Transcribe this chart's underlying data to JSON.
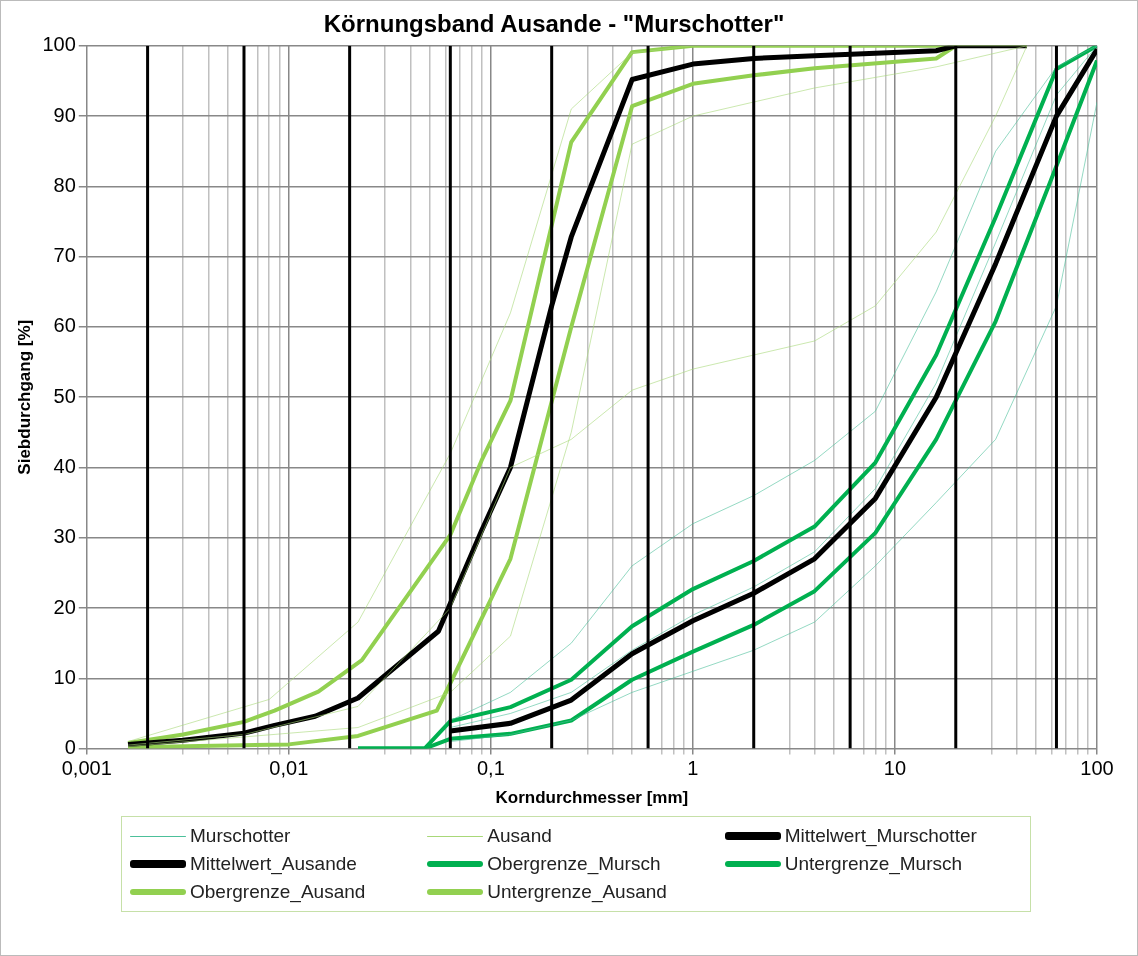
{
  "chart_data": {
    "type": "line",
    "title": "Körnungsband Ausande - \"Murschotter\"",
    "xlabel": "Korndurchmesser [mm]",
    "ylabel": "Siebdurchgang [%]",
    "log": "x",
    "grid": true,
    "legend": "bottom",
    "marker": "none",
    "line_style": "solid",
    "xlim": [
      0.001,
      100
    ],
    "ylim": [
      0,
      100
    ],
    "xticks": [
      {
        "value": 0.001,
        "label": "0,001"
      },
      {
        "value": 0.003,
        "label": null
      },
      {
        "value": 0.004,
        "label": null
      },
      {
        "value": 0.005,
        "label": null
      },
      {
        "value": 0.007,
        "label": null
      },
      {
        "value": 0.008,
        "label": null
      },
      {
        "value": 0.009,
        "label": null
      },
      {
        "value": 0.01,
        "label": "0,01"
      },
      {
        "value": 0.03,
        "label": null
      },
      {
        "value": 0.04,
        "label": null
      },
      {
        "value": 0.05,
        "label": null
      },
      {
        "value": 0.06,
        "label": null
      },
      {
        "value": 0.07,
        "label": null
      },
      {
        "value": 0.08,
        "label": null
      },
      {
        "value": 0.09,
        "label": null
      },
      {
        "value": 0.1,
        "label": "0,1"
      },
      {
        "value": 0.3,
        "label": null
      },
      {
        "value": 0.4,
        "label": null
      },
      {
        "value": 0.5,
        "label": null
      },
      {
        "value": 0.7,
        "label": null
      },
      {
        "value": 0.8,
        "label": null
      },
      {
        "value": 0.9,
        "label": null
      },
      1,
      {
        "value": 3,
        "label": null
      },
      {
        "value": 4,
        "label": null
      },
      {
        "value": 5,
        "label": null
      },
      {
        "value": 7,
        "label": null
      },
      {
        "value": 8,
        "label": null
      },
      {
        "value": 9,
        "label": null
      },
      10,
      {
        "value": 30,
        "label": null
      },
      {
        "value": 40,
        "label": null
      },
      {
        "value": 50,
        "label": null
      },
      {
        "value": 60,
        "label": null
      },
      {
        "value": 70,
        "label": null
      },
      {
        "value": 80,
        "label": null
      },
      {
        "value": 90,
        "label": null
      },
      100
    ],
    "yticks": [
      0,
      10,
      20,
      30,
      40,
      50,
      60,
      70,
      80,
      90,
      100
    ],
    "ref_lines": [
      {
        "axis": "x",
        "value": 0.002,
        "color": "#000000"
      },
      {
        "axis": "x",
        "value": 0.006,
        "color": "#000000"
      },
      {
        "axis": "x",
        "value": 0.02,
        "color": "#000000"
      },
      {
        "axis": "x",
        "value": 0.063,
        "color": "#000000"
      },
      {
        "axis": "x",
        "value": 0.2,
        "color": "#000000"
      },
      {
        "axis": "x",
        "value": 0.6,
        "color": "#000000"
      },
      {
        "axis": "x",
        "value": 2,
        "color": "#000000"
      },
      {
        "axis": "x",
        "value": 6,
        "color": "#000000"
      },
      {
        "axis": "x",
        "value": 20,
        "color": "#000000"
      },
      {
        "axis": "x",
        "value": 63,
        "color": "#000000"
      }
    ],
    "series": [
      {
        "name": "Murschotter",
        "color": "#4cc09a",
        "x": [
          0.063,
          0.125,
          0.25,
          0.5,
          1,
          2,
          4,
          8,
          16,
          31.5,
          63,
          100
        ],
        "values": [
          4,
          8,
          15,
          26,
          32,
          36,
          41,
          48,
          65,
          85,
          97,
          100
        ]
      },
      {
        "color": "#4cc09a",
        "x": [
          0.063,
          0.125,
          0.25,
          0.5,
          1,
          2,
          4,
          8,
          16,
          31.5,
          63,
          100
        ],
        "values": [
          1,
          2,
          4,
          8,
          11,
          14,
          18,
          26,
          35,
          44,
          63,
          92
        ]
      },
      {
        "color": "#4cc09a",
        "x": [
          0.063,
          0.125,
          0.25,
          0.5,
          1,
          2,
          4,
          8,
          16,
          31.5,
          63,
          100
        ],
        "values": [
          3,
          5,
          8,
          14,
          19,
          23,
          28,
          37,
          52,
          72,
          93,
          100
        ]
      },
      {
        "name": "Ausand",
        "color": "#a8d878",
        "x": [
          0.0016,
          0.006,
          0.022,
          0.063,
          0.125,
          0.25,
          0.5,
          1,
          4,
          8,
          16,
          31.5,
          45
        ],
        "values": [
          0.5,
          2,
          6,
          20,
          40,
          44,
          51,
          54,
          58,
          63,
          73.5,
          90,
          100
        ]
      },
      {
        "color": "#a8d878",
        "x": [
          0.0016,
          0.008,
          0.022,
          0.063,
          0.125,
          0.25,
          0.5,
          1,
          45
        ],
        "values": [
          1,
          7,
          18,
          42,
          62,
          91,
          99,
          100,
          100
        ]
      },
      {
        "color": "#a8d878",
        "x": [
          0.0016,
          0.022,
          0.063,
          0.125,
          0.25,
          0.5,
          1,
          2,
          4,
          16,
          45
        ],
        "values": [
          0.3,
          3,
          8,
          16,
          45,
          86,
          90,
          92,
          94,
          97,
          100
        ]
      },
      {
        "name": "Mittelwert_Murschotter",
        "color": "#000000",
        "x": [
          0.063,
          0.125,
          0.25,
          0.5,
          1,
          2,
          4,
          8,
          16,
          31.5,
          63,
          100
        ],
        "values": [
          2.5,
          3.6,
          6.9,
          13.5,
          18.2,
          22.1,
          27,
          35.6,
          50,
          69,
          90,
          99.5
        ]
      },
      {
        "name": "Mittelwert_Ausande",
        "color": "#000000",
        "x": [
          0.0016,
          0.003,
          0.006,
          0.0085,
          0.0135,
          0.022,
          0.055,
          0.09,
          0.125,
          0.2,
          0.25,
          0.5,
          1,
          2,
          4,
          16,
          20,
          45
        ],
        "values": [
          0.6,
          1.2,
          2.2,
          3.3,
          4.6,
          7.2,
          16.7,
          31,
          40,
          63,
          72.8,
          95.2,
          97.4,
          98.2,
          98.6,
          99.3,
          100,
          100
        ]
      },
      {
        "name": "Obergrenze_Mursch",
        "color": "#00b050",
        "x": [
          0.022,
          0.047,
          0.063,
          0.125,
          0.25,
          0.5,
          1,
          2,
          4,
          8,
          16,
          31.5,
          63,
          100
        ],
        "values": [
          0,
          0,
          3.9,
          5.9,
          9.8,
          17.4,
          22.7,
          26.7,
          31.6,
          40.7,
          56,
          75.6,
          96.7,
          100
        ]
      },
      {
        "name": "Untergrenze_Mursch",
        "color": "#00b050",
        "x": [
          0.022,
          0.047,
          0.063,
          0.125,
          0.25,
          0.5,
          1,
          2,
          4,
          8,
          16,
          31.5,
          63,
          100
        ],
        "values": [
          0,
          0,
          1.4,
          2.1,
          4,
          9.8,
          13.8,
          17.6,
          22.4,
          30.7,
          44,
          60.8,
          82.9,
          97.9
        ]
      },
      {
        "name": "Obergrenze_Ausand",
        "color": "#92d050",
        "x": [
          0.0016,
          0.003,
          0.006,
          0.0085,
          0.014,
          0.023,
          0.063,
          0.09,
          0.125,
          0.25,
          0.5,
          1,
          45
        ],
        "values": [
          0.8,
          2,
          3.8,
          5.4,
          8.1,
          12.6,
          30.4,
          41,
          49.5,
          86.3,
          99.1,
          100,
          100
        ]
      },
      {
        "name": "Untergrenze_Ausand",
        "color": "#92d050",
        "x": [
          0.0016,
          0.01,
          0.022,
          0.054,
          0.063,
          0.125,
          0.25,
          0.5,
          1,
          2,
          4,
          16,
          20,
          45
        ],
        "values": [
          0.2,
          0.6,
          1.8,
          5.4,
          9.3,
          27,
          60,
          91.4,
          94.6,
          95.8,
          96.8,
          98.2,
          100,
          100
        ]
      }
    ]
  }
}
